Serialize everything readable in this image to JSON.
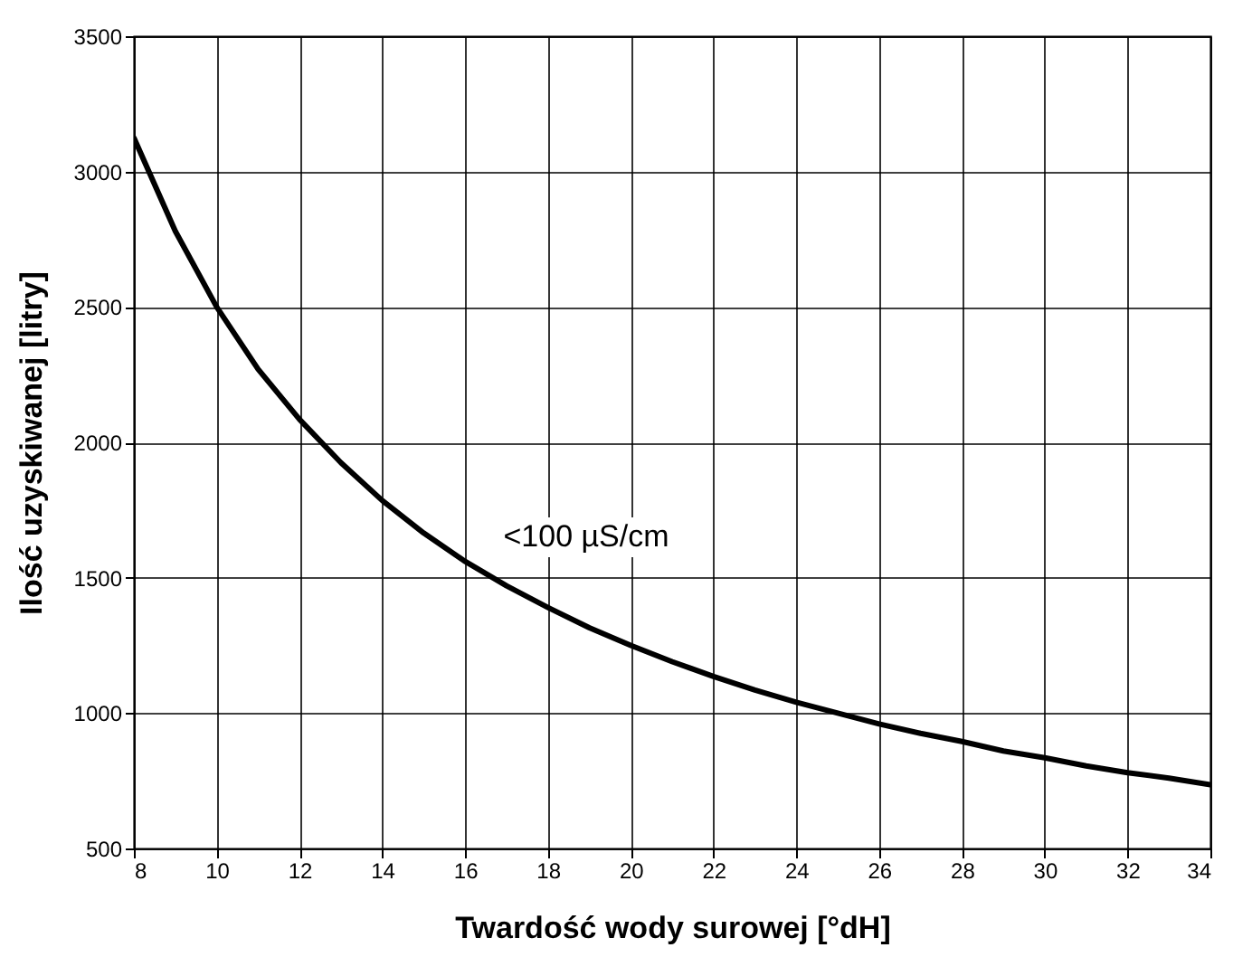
{
  "chart_data": {
    "type": "line",
    "xlabel": "Twardość wody surowej [°dH]",
    "ylabel": "Ilość uzyskiwanej [litry]",
    "x": [
      8,
      9,
      10,
      11,
      12,
      13,
      14,
      15,
      16,
      17,
      18,
      19,
      20,
      21,
      22,
      23,
      24,
      25,
      26,
      27,
      28,
      29,
      30,
      31,
      32,
      33,
      34
    ],
    "series": [
      {
        "color": "#000000",
        "values": [
          3125,
          2780,
          2500,
          2270,
          2085,
          1925,
          1785,
          1665,
          1560,
          1470,
          1390,
          1315,
          1250,
          1190,
          1135,
          1085,
          1040,
          1000,
          960,
          925,
          895,
          860,
          835,
          805,
          780,
          760,
          735
        ]
      }
    ],
    "annotations": [
      "<100 µS/cm"
    ],
    "xlim": [
      8,
      34
    ],
    "xticks": [
      8,
      10,
      12,
      14,
      16,
      18,
      20,
      22,
      24,
      26,
      28,
      30,
      32,
      34
    ],
    "ylim": [
      500,
      3500
    ],
    "yticks": [
      500,
      1000,
      1500,
      2000,
      2500,
      3000,
      3500
    ],
    "grid": true,
    "line_style": "solid",
    "marker": "none"
  }
}
